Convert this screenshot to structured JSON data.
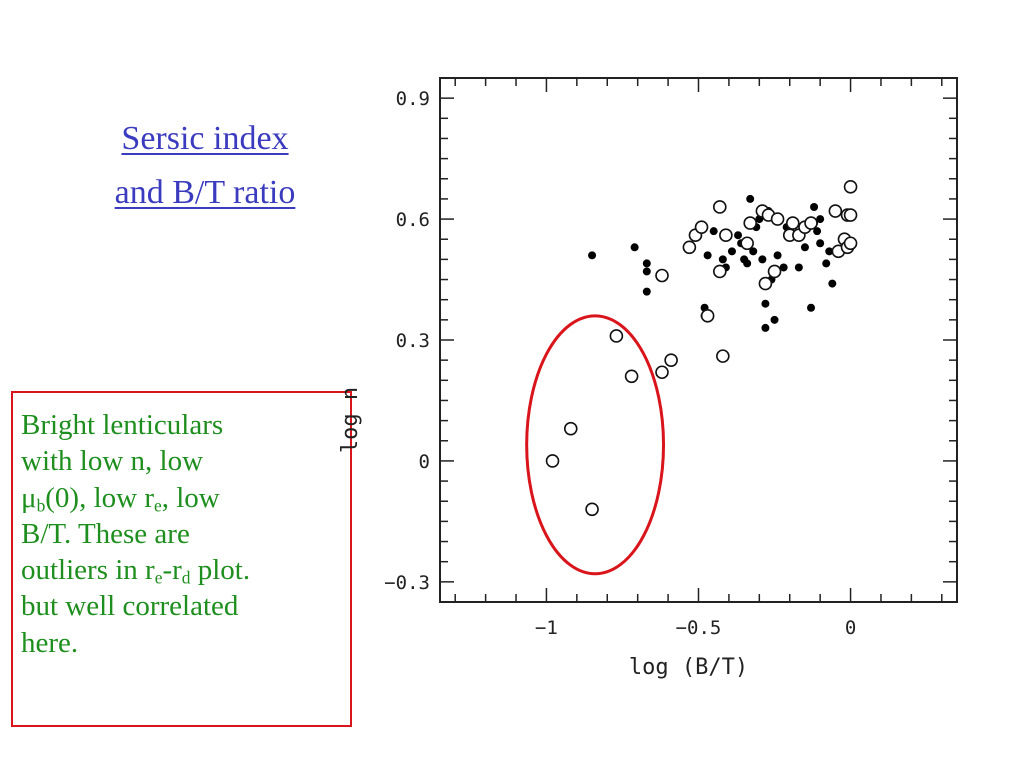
{
  "slide": {
    "title_line1": "Sersic index",
    "title_line2": "and B/T ratio",
    "title_color": "#3b3bbf"
  },
  "annotation": {
    "box_color": "#d9141b",
    "text_color": "#1e8f1e",
    "line1": "Bright lenticulars",
    "line2": "with low n, low",
    "line3_mu": "μ",
    "line3_sub_b": "b",
    "line3_a": "(0), low r",
    "line3_sub_e": "e",
    "line3_b": ", low",
    "line4": "B/T.  These are",
    "line5_a": "outliers in r",
    "line5_sub_e": "e",
    "line5_b": "-r",
    "line5_sub_d": "d",
    "line5_c": " plot.",
    "line6": "but well correlated",
    "line7": "here."
  },
  "chart_data": {
    "type": "scatter",
    "xlabel": "log (B/T)",
    "ylabel": "log n",
    "xlim": [
      -1.35,
      0.35
    ],
    "ylim": [
      -0.35,
      0.95
    ],
    "x_ticks": [
      -1,
      -0.5,
      0
    ],
    "x_tick_labels": [
      "−1",
      "−0.5",
      "0"
    ],
    "y_ticks": [
      -0.3,
      0,
      0.3,
      0.6,
      0.9
    ],
    "y_tick_labels": [
      "−0.3",
      "0",
      "0.3",
      "0.6",
      "0.9"
    ],
    "grid": false,
    "highlight_ellipse": {
      "cx": -0.84,
      "cy": 0.04,
      "rx": 0.225,
      "ry": 0.32,
      "color": "#d9141b"
    },
    "series": [
      {
        "marker": "filled-circle",
        "points": [
          [
            -0.85,
            0.51
          ],
          [
            -0.71,
            0.53
          ],
          [
            -0.67,
            0.49
          ],
          [
            -0.67,
            0.47
          ],
          [
            -0.67,
            0.42
          ],
          [
            -0.48,
            0.38
          ],
          [
            -0.48,
            0.36
          ],
          [
            -0.47,
            0.51
          ],
          [
            -0.45,
            0.57
          ],
          [
            -0.42,
            0.5
          ],
          [
            -0.41,
            0.48
          ],
          [
            -0.39,
            0.52
          ],
          [
            -0.37,
            0.56
          ],
          [
            -0.36,
            0.54
          ],
          [
            -0.35,
            0.5
          ],
          [
            -0.34,
            0.49
          ],
          [
            -0.33,
            0.65
          ],
          [
            -0.32,
            0.52
          ],
          [
            -0.31,
            0.58
          ],
          [
            -0.3,
            0.6
          ],
          [
            -0.29,
            0.61
          ],
          [
            -0.29,
            0.5
          ],
          [
            -0.28,
            0.39
          ],
          [
            -0.28,
            0.33
          ],
          [
            -0.27,
            0.62
          ],
          [
            -0.26,
            0.45
          ],
          [
            -0.25,
            0.47
          ],
          [
            -0.25,
            0.35
          ],
          [
            -0.24,
            0.51
          ],
          [
            -0.22,
            0.48
          ],
          [
            -0.21,
            0.58
          ],
          [
            -0.19,
            0.56
          ],
          [
            -0.18,
            0.56
          ],
          [
            -0.17,
            0.48
          ],
          [
            -0.15,
            0.53
          ],
          [
            -0.13,
            0.38
          ],
          [
            -0.12,
            0.63
          ],
          [
            -0.12,
            0.59
          ],
          [
            -0.11,
            0.57
          ],
          [
            -0.1,
            0.6
          ],
          [
            -0.1,
            0.54
          ],
          [
            -0.08,
            0.49
          ],
          [
            -0.07,
            0.52
          ],
          [
            -0.06,
            0.44
          ]
        ]
      },
      {
        "marker": "open-circle",
        "points": [
          [
            -0.98,
            0.0
          ],
          [
            -0.92,
            0.08
          ],
          [
            -0.85,
            -0.12
          ],
          [
            -0.77,
            0.31
          ],
          [
            -0.72,
            0.21
          ],
          [
            -0.62,
            0.22
          ],
          [
            -0.62,
            0.46
          ],
          [
            -0.59,
            0.25
          ],
          [
            -0.53,
            0.53
          ],
          [
            -0.51,
            0.56
          ],
          [
            -0.49,
            0.58
          ],
          [
            -0.47,
            0.36
          ],
          [
            -0.43,
            0.63
          ],
          [
            -0.43,
            0.47
          ],
          [
            -0.42,
            0.26
          ],
          [
            -0.41,
            0.56
          ],
          [
            -0.34,
            0.54
          ],
          [
            -0.33,
            0.59
          ],
          [
            -0.29,
            0.62
          ],
          [
            -0.28,
            0.44
          ],
          [
            -0.27,
            0.61
          ],
          [
            -0.25,
            0.47
          ],
          [
            -0.24,
            0.6
          ],
          [
            -0.2,
            0.56
          ],
          [
            -0.19,
            0.59
          ],
          [
            -0.17,
            0.56
          ],
          [
            -0.15,
            0.58
          ],
          [
            -0.13,
            0.59
          ],
          [
            -0.05,
            0.62
          ],
          [
            -0.04,
            0.52
          ],
          [
            -0.02,
            0.55
          ],
          [
            -0.01,
            0.61
          ],
          [
            0.0,
            0.68
          ],
          [
            0.0,
            0.61
          ],
          [
            -0.01,
            0.53
          ],
          [
            0.0,
            0.54
          ]
        ]
      }
    ]
  }
}
